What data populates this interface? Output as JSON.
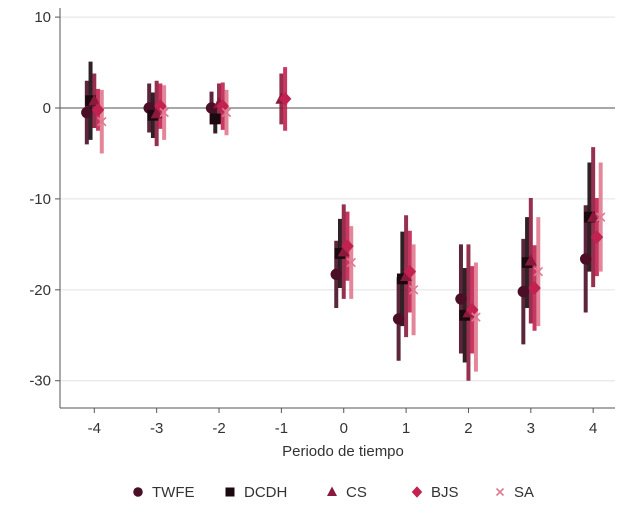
{
  "chart_data": {
    "type": "scatter",
    "subtype": "coefficient-plot-with-confidence-intervals",
    "title": "",
    "xlabel": "Periodo de tiempo",
    "ylabel": "",
    "x": [
      -4,
      -3,
      -2,
      -1,
      0,
      1,
      2,
      3,
      4
    ],
    "x_tick_labels": [
      "-4",
      "-3",
      "-2",
      "-1",
      "0",
      "1",
      "2",
      "3",
      "4"
    ],
    "ylim": [
      -33,
      11
    ],
    "y_ticks": [
      10,
      0,
      -10,
      -20,
      -30
    ],
    "y_tick_labels": [
      "10",
      "0",
      "-10",
      "-20",
      "-30"
    ],
    "reference_line": 0,
    "grid": true,
    "legend_position": "bottom",
    "series": [
      {
        "name": "TWFE",
        "marker": "circle",
        "color": "#4a0f26",
        "points": [
          {
            "x": -4,
            "y": -0.5,
            "ci": [
              -4.0,
              3.0
            ]
          },
          {
            "x": -3,
            "y": 0.0,
            "ci": [
              -2.7,
              2.7
            ]
          },
          {
            "x": -2,
            "y": 0.0,
            "ci": [
              -1.8,
              1.8
            ]
          },
          {
            "x": 0,
            "y": -18.3,
            "ci": [
              -22.0,
              -14.6
            ]
          },
          {
            "x": 1,
            "y": -23.2,
            "ci": [
              -27.8,
              -18.6
            ]
          },
          {
            "x": 2,
            "y": -21.0,
            "ci": [
              -27.0,
              -15.0
            ]
          },
          {
            "x": 3,
            "y": -20.2,
            "ci": [
              -26.0,
              -14.4
            ]
          },
          {
            "x": 4,
            "y": -16.6,
            "ci": [
              -22.5,
              -10.7
            ]
          }
        ]
      },
      {
        "name": "DCDH",
        "marker": "square",
        "color": "#1a0a10",
        "points": [
          {
            "x": -4,
            "y": 0.8,
            "ci": [
              -3.5,
              5.1
            ]
          },
          {
            "x": -3,
            "y": -0.8,
            "ci": [
              -3.3,
              1.7
            ]
          },
          {
            "x": -2,
            "y": -1.2,
            "ci": [
              -2.8,
              0.4
            ]
          },
          {
            "x": 0,
            "y": -16.0,
            "ci": [
              -19.8,
              -12.2
            ]
          },
          {
            "x": 1,
            "y": -18.8,
            "ci": [
              -24.0,
              -13.6
            ]
          },
          {
            "x": 2,
            "y": -22.8,
            "ci": [
              -28.0,
              -17.6
            ]
          },
          {
            "x": 3,
            "y": -17.0,
            "ci": [
              -22.0,
              -12.0
            ]
          },
          {
            "x": 4,
            "y": -12.0,
            "ci": [
              -18.0,
              -6.0
            ]
          }
        ]
      },
      {
        "name": "CS",
        "marker": "triangle",
        "color": "#8a1a3c",
        "points": [
          {
            "x": -4,
            "y": 0.8,
            "ci": [
              -2.2,
              3.8
            ]
          },
          {
            "x": -3,
            "y": -0.6,
            "ci": [
              -4.2,
              3.0
            ]
          },
          {
            "x": -2,
            "y": 0.5,
            "ci": [
              -1.7,
              2.7
            ]
          },
          {
            "x": -1,
            "y": 1.0,
            "ci": [
              -1.8,
              3.8
            ]
          },
          {
            "x": 0,
            "y": -15.8,
            "ci": [
              -21.0,
              -10.6
            ]
          },
          {
            "x": 1,
            "y": -18.5,
            "ci": [
              -25.2,
              -11.8
            ]
          },
          {
            "x": 2,
            "y": -22.5,
            "ci": [
              -30.0,
              -15.0
            ]
          },
          {
            "x": 3,
            "y": -16.8,
            "ci": [
              -23.7,
              -9.9
            ]
          },
          {
            "x": 4,
            "y": -12.0,
            "ci": [
              -19.7,
              -4.3
            ]
          }
        ]
      },
      {
        "name": "BJS",
        "marker": "diamond",
        "color": "#c22250",
        "points": [
          {
            "x": -4,
            "y": -0.2,
            "ci": [
              -2.5,
              2.1
            ]
          },
          {
            "x": -3,
            "y": 0.2,
            "ci": [
              -2.3,
              2.7
            ]
          },
          {
            "x": -2,
            "y": 0.2,
            "ci": [
              -2.4,
              2.8
            ]
          },
          {
            "x": -1,
            "y": 1.0,
            "ci": [
              -2.5,
              4.5
            ]
          },
          {
            "x": 0,
            "y": -15.2,
            "ci": [
              -19.0,
              -11.4
            ]
          },
          {
            "x": 1,
            "y": -18.0,
            "ci": [
              -22.5,
              -13.5
            ]
          },
          {
            "x": 2,
            "y": -22.2,
            "ci": [
              -27.0,
              -17.4
            ]
          },
          {
            "x": 3,
            "y": -19.8,
            "ci": [
              -24.5,
              -15.1
            ]
          },
          {
            "x": 4,
            "y": -14.2,
            "ci": [
              -18.5,
              -9.9
            ]
          }
        ]
      },
      {
        "name": "SA",
        "marker": "x",
        "color": "#e07a90",
        "points": [
          {
            "x": -4,
            "y": -1.5,
            "ci": [
              -5.0,
              2.0
            ]
          },
          {
            "x": -3,
            "y": -0.5,
            "ci": [
              -3.5,
              2.5
            ]
          },
          {
            "x": -2,
            "y": -0.5,
            "ci": [
              -3.0,
              2.0
            ]
          },
          {
            "x": 0,
            "y": -17.0,
            "ci": [
              -21.0,
              -13.0
            ]
          },
          {
            "x": 1,
            "y": -20.0,
            "ci": [
              -25.0,
              -15.0
            ]
          },
          {
            "x": 2,
            "y": -23.0,
            "ci": [
              -29.0,
              -17.0
            ]
          },
          {
            "x": 3,
            "y": -18.0,
            "ci": [
              -24.0,
              -12.0
            ]
          },
          {
            "x": 4,
            "y": -12.0,
            "ci": [
              -18.0,
              -6.0
            ]
          }
        ]
      }
    ]
  }
}
